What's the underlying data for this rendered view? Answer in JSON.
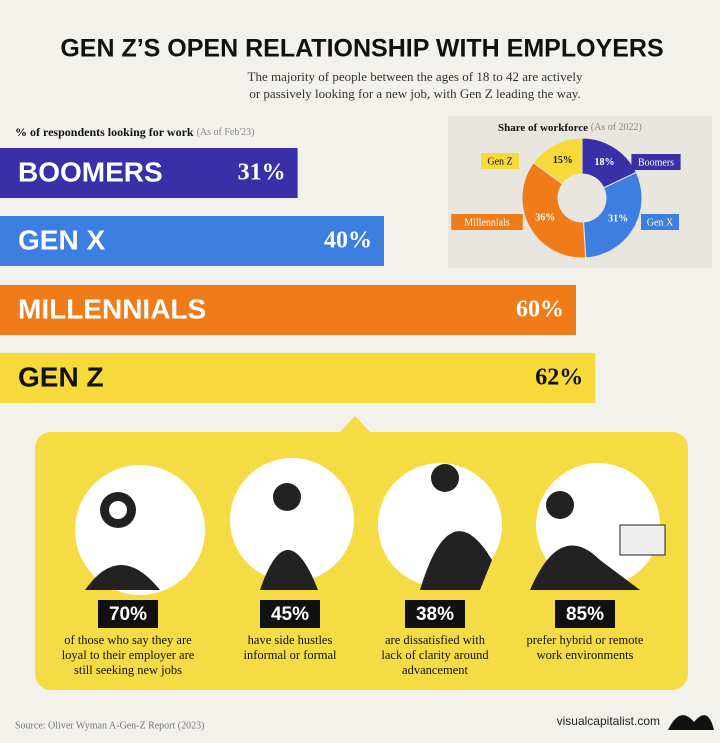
{
  "header": {
    "title": "GEN Z’S OPEN RELATIONSHIP WITH EMPLOYERS",
    "subtitle": [
      "The majority of people between the ages of 18 to 42 are actively",
      "or passively looking for a new job, with Gen Z leading the way."
    ]
  },
  "chart_data": [
    {
      "type": "bar",
      "orientation": "horizontal",
      "title": "% of respondents looking for work",
      "subtitle": "(As of Feb'23)",
      "categories": [
        "BOOMERS",
        "GEN X",
        "MILLENNIALS",
        "GEN Z"
      ],
      "values": [
        31,
        40,
        60,
        62
      ],
      "value_labels": [
        "31%",
        "40%",
        "60%",
        "62%"
      ],
      "colors": [
        "#3a2fa6",
        "#3d7fe0",
        "#f07c19",
        "#f8d93a"
      ],
      "xlim": [
        0,
        75
      ]
    },
    {
      "type": "pie",
      "donut": true,
      "title": "Share of workforce",
      "subtitle": "(As of 2022)",
      "categories": [
        "Boomers",
        "Gen X",
        "Millennials",
        "Gen Z"
      ],
      "values": [
        18,
        31,
        36,
        15
      ],
      "value_labels": [
        "18%",
        "31%",
        "36%",
        "15%"
      ],
      "colors": [
        "#3a2fa6",
        "#3d7fe0",
        "#f07c19",
        "#f8d93a"
      ]
    }
  ],
  "stats": [
    {
      "value": "70%",
      "text": [
        "of those who say they are",
        "loyal to their employer are",
        "still seeking new jobs"
      ]
    },
    {
      "value": "45%",
      "text": [
        "have side hustles",
        "informal or formal"
      ]
    },
    {
      "value": "38%",
      "text": [
        "are dissatisfied with",
        "lack of clarity around",
        "advancement"
      ]
    },
    {
      "value": "85%",
      "text": [
        "prefer hybrid or remote",
        "work environments"
      ]
    }
  ],
  "footer": {
    "source": "Source: Oliver Wyman A-Gen-Z Report (2023)",
    "brand": "visualcapitalist.com"
  }
}
